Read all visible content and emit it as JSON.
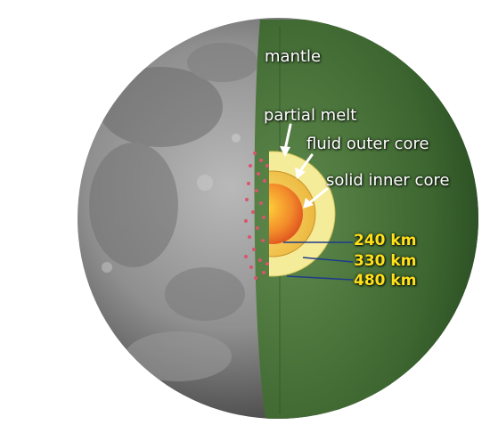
{
  "labels": {
    "mantle": "mantle",
    "partial_melt": "partial melt",
    "fluid_outer_core": "fluid outer core",
    "solid_inner_core": "solid inner core",
    "radius_inner": "240 km",
    "radius_outer": "330 km",
    "radius_partial": "480 km"
  },
  "colors": {
    "moon_surface": "#8d8d8d",
    "mantle": "#3f6b32",
    "partial_melt_zone": "#f5ec9a",
    "outer_core": "#f3c64a",
    "inner_core": "#e85a22",
    "melt_dots": "#d9546d",
    "radius_label": "#ffe11a",
    "leader_line": "#1e3a8a"
  }
}
